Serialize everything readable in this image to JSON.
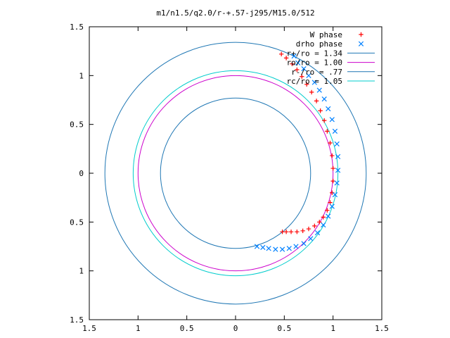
{
  "chart_data": {
    "type": "scatter",
    "title": "m1/n1.5/q2.0/r-+.57-j295/M15.0/512",
    "xlabel": "",
    "ylabel": "",
    "xlim": [
      -1.5,
      1.5
    ],
    "ylim": [
      -1.5,
      1.5
    ],
    "xticks": [
      -1.5,
      -1,
      -0.5,
      0,
      0.5,
      1,
      1.5
    ],
    "yticks": [
      -1.5,
      -1,
      -0.5,
      0,
      0.5,
      1,
      1.5
    ],
    "xtick_labels": [
      "1.5",
      "1",
      "0.5",
      "0",
      "0.5",
      "1",
      "1.5"
    ],
    "ytick_labels": [
      "1.5",
      "1",
      "0.5",
      "0",
      "0.5",
      "1",
      "1.5"
    ],
    "grid": false,
    "legend_position": "top-right",
    "series": [
      {
        "name": "W phase",
        "kind": "points",
        "marker": "plus",
        "color": "#ff0000",
        "x": [
          0.47,
          0.52,
          0.58,
          0.63,
          0.68,
          0.73,
          0.78,
          0.83,
          0.87,
          0.91,
          0.94,
          0.97,
          0.99,
          1.0,
          1.0,
          0.99,
          0.97,
          0.94,
          0.9,
          0.86,
          0.81,
          0.75,
          0.69,
          0.63,
          0.57,
          0.52,
          0.48
        ],
        "y": [
          1.22,
          1.18,
          1.12,
          1.06,
          0.99,
          0.91,
          0.83,
          0.74,
          0.64,
          0.54,
          0.43,
          0.31,
          0.18,
          0.05,
          -0.08,
          -0.2,
          -0.3,
          -0.38,
          -0.45,
          -0.5,
          -0.54,
          -0.57,
          -0.59,
          -0.6,
          -0.6,
          -0.6,
          -0.6
        ]
      },
      {
        "name": "drho phase",
        "kind": "points",
        "marker": "cross",
        "color": "#0080ff",
        "x": [
          0.6,
          0.64,
          0.7,
          0.75,
          0.81,
          0.86,
          0.91,
          0.95,
          0.99,
          1.02,
          1.04,
          1.05,
          1.05,
          1.04,
          1.02,
          0.99,
          0.95,
          0.9,
          0.84,
          0.77,
          0.7,
          0.62,
          0.55,
          0.48,
          0.41,
          0.34,
          0.28,
          0.22
        ],
        "y": [
          1.2,
          1.13,
          1.07,
          1.0,
          0.93,
          0.85,
          0.76,
          0.66,
          0.55,
          0.43,
          0.3,
          0.17,
          0.03,
          -0.1,
          -0.22,
          -0.34,
          -0.44,
          -0.53,
          -0.61,
          -0.67,
          -0.72,
          -0.75,
          -0.77,
          -0.78,
          -0.78,
          -0.77,
          -0.76,
          -0.75
        ]
      },
      {
        "name": "r+/ro = 1.34",
        "kind": "circle",
        "radius": 1.34,
        "color": "#1f77b4"
      },
      {
        "name": "ro/ro = 1.00",
        "kind": "circle",
        "radius": 1.0,
        "color": "#cc00cc"
      },
      {
        "name": "r-/ro = .77",
        "kind": "circle",
        "radius": 0.77,
        "color": "#1f77b4"
      },
      {
        "name": "rc/ro = 1.05",
        "kind": "circle",
        "radius": 1.05,
        "color": "#00cccc"
      }
    ]
  }
}
